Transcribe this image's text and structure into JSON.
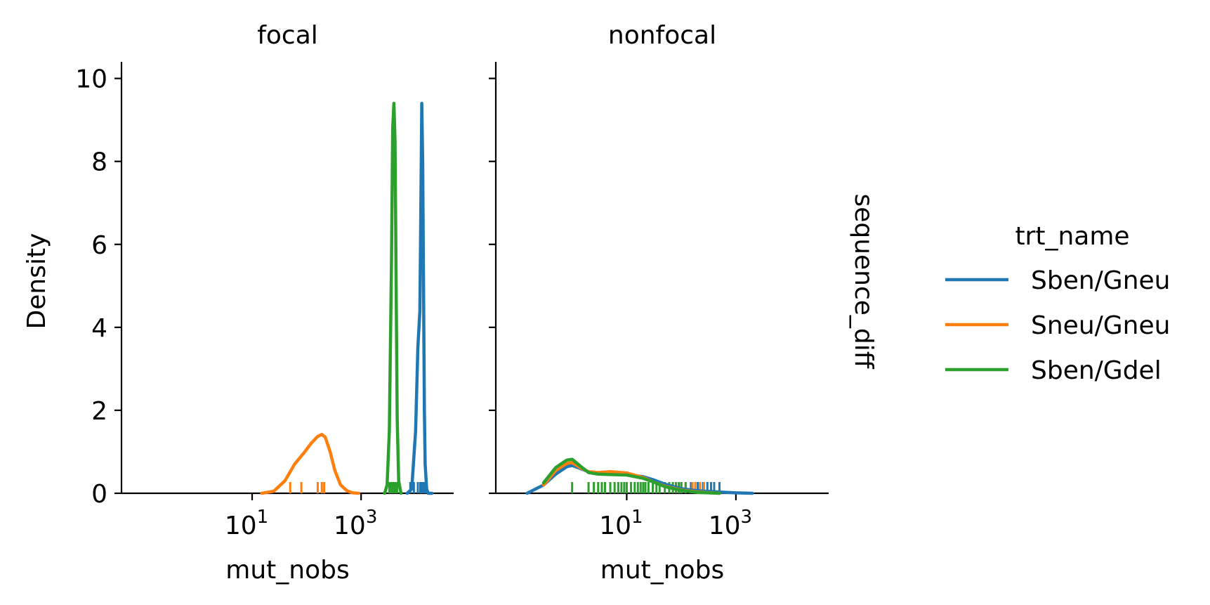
{
  "chart_data": {
    "type": "line",
    "subtype": "kde-with-rug",
    "facet_variable": "sequence_diff",
    "panels": [
      {
        "title": "focal",
        "series": [
          {
            "name": "Sben/Gneu",
            "color": "#1f77b4",
            "x": [
              7000,
              8500,
              10000,
              11000,
              12000,
              12600,
              13000,
              13500,
              14000,
              14500,
              15000,
              16000,
              17000,
              18500,
              20000
            ],
            "y": [
              0,
              0.1,
              1.5,
              3.5,
              4.4,
              7.5,
              9.4,
              8.0,
              5.0,
              2.0,
              0.7,
              0.1,
              0,
              0,
              0
            ],
            "rug": [
              8000,
              9300,
              11000,
              12200,
              12700,
              13100,
              13600,
              14300,
              15000
            ]
          },
          {
            "name": "Sneu/Gneu",
            "color": "#ff7f0e",
            "x": [
              15,
              25,
              40,
              60,
              90,
              120,
              160,
              190,
              220,
              270,
              330,
              420,
              550,
              700,
              900
            ],
            "y": [
              0,
              0.05,
              0.3,
              0.7,
              0.98,
              1.2,
              1.37,
              1.42,
              1.35,
              1.0,
              0.55,
              0.2,
              0.06,
              0.01,
              0
            ],
            "rug": [
              50,
              80,
              160,
              190,
              210
            ]
          },
          {
            "name": "Sben/Gdel",
            "color": "#2ca02c",
            "x": [
              2700,
              3000,
              3300,
              3600,
              3800,
              4000,
              4200,
              4400,
              4600,
              4900,
              5400
            ],
            "y": [
              0,
              0.2,
              1.5,
              5.5,
              8.8,
              9.4,
              8.5,
              5.0,
              1.8,
              0.3,
              0
            ],
            "rug": [
              3300,
              3500,
              3650,
              3800,
              3900,
              4000,
              4100,
              4250,
              4400,
              4600
            ]
          }
        ]
      },
      {
        "title": "nonfocal",
        "series": [
          {
            "name": "Sben/Gneu",
            "color": "#1f77b4",
            "x": [
              0.15,
              0.3,
              0.5,
              0.8,
              1.0,
              1.4,
              2.0,
              3,
              5,
              10,
              20,
              30,
              50,
              100,
              200,
              500,
              1000,
              2000
            ],
            "y": [
              0,
              0.2,
              0.46,
              0.64,
              0.67,
              0.6,
              0.52,
              0.48,
              0.47,
              0.45,
              0.4,
              0.33,
              0.22,
              0.11,
              0.06,
              0.03,
              0.01,
              0
            ],
            "rug": [
              100,
              150,
              200,
              250,
              300,
              350,
              400,
              500
            ]
          },
          {
            "name": "Sneu/Gneu",
            "color": "#ff7f0e",
            "x": [
              0.3,
              0.5,
              0.8,
              1.0,
              1.4,
              2.0,
              3,
              5,
              10,
              20,
              30,
              50,
              100,
              200,
              500
            ],
            "y": [
              0.2,
              0.55,
              0.72,
              0.74,
              0.62,
              0.52,
              0.5,
              0.52,
              0.49,
              0.38,
              0.28,
              0.17,
              0.08,
              0.03,
              0
            ],
            "rug": [
              80,
              120,
              160,
              180,
              220,
              260
            ]
          },
          {
            "name": "Sben/Gdel",
            "color": "#2ca02c",
            "x": [
              0.3,
              0.5,
              0.8,
              1.0,
              1.4,
              2.0,
              3,
              5,
              10,
              20,
              30,
              50,
              100,
              200,
              500
            ],
            "y": [
              0.25,
              0.62,
              0.8,
              0.82,
              0.66,
              0.5,
              0.46,
              0.45,
              0.44,
              0.36,
              0.28,
              0.16,
              0.07,
              0.02,
              0
            ],
            "rug": [
              1,
              2,
              2.5,
              3,
              3.5,
              4,
              5,
              6,
              7,
              8,
              9,
              10,
              12,
              14,
              16,
              18,
              20,
              22,
              25,
              30,
              35,
              40,
              50,
              60,
              70,
              80,
              90,
              100,
              120
            ]
          }
        ]
      }
    ],
    "xlabel": "mut_nobs",
    "ylabel": "Density",
    "xscale": "log",
    "xlim": [
      0.04,
      50000
    ],
    "ylim": [
      0,
      10.4
    ],
    "xticks": [
      {
        "value": 10,
        "label": "10",
        "exp": "1"
      },
      {
        "value": 1000,
        "label": "10",
        "exp": "3"
      }
    ],
    "yticks": [
      0,
      2,
      4,
      6,
      8,
      10
    ],
    "grid": false,
    "legend": {
      "title": "trt_name",
      "placement": "right",
      "entries": [
        {
          "label": "Sben/Gneu",
          "color": "#1f77b4"
        },
        {
          "label": "Sneu/Gneu",
          "color": "#ff7f0e"
        },
        {
          "label": "Sben/Gdel",
          "color": "#2ca02c"
        }
      ]
    }
  }
}
